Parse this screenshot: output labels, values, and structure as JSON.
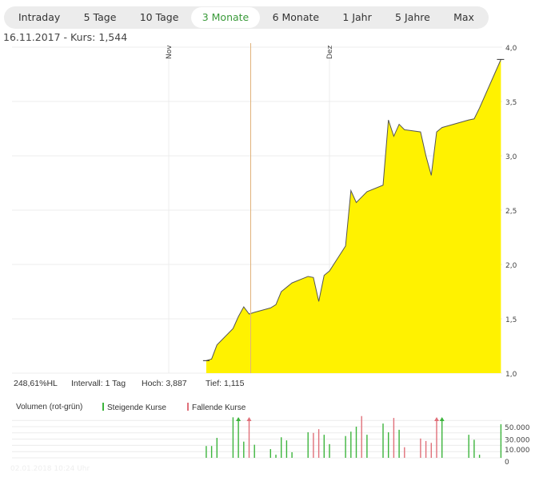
{
  "tabs": [
    {
      "label": "Intraday"
    },
    {
      "label": "5 Tage"
    },
    {
      "label": "10 Tage"
    },
    {
      "label": "3 Monate",
      "active": true
    },
    {
      "label": "6 Monate"
    },
    {
      "label": "1 Jahr"
    },
    {
      "label": "5 Jahre"
    },
    {
      "label": "Max"
    }
  ],
  "header": {
    "cursor_text": "16.11.2017  -  Kurs: 1,544"
  },
  "stats": {
    "change": "248,61%HL",
    "interval": "Intervall: 1 Tag",
    "high": "Hoch:  3,887",
    "low": "Tief:  1,115"
  },
  "volume_legend": {
    "title": "Volumen (rot-grün)",
    "rising": "Steigende Kurse",
    "falling": "Fallende Kurse"
  },
  "timestamp": "02.01.2018 10:24 Uhr",
  "colors": {
    "accent": "#3a9a3a",
    "area": "#fff200",
    "line": "#555555",
    "cursor": "#e0b27a",
    "rising": "#3cb43c",
    "falling": "#e0707a"
  },
  "chart_data": [
    {
      "type": "area",
      "month_labels": [
        {
          "label": "Nov",
          "date": "2017-11-01"
        },
        {
          "label": "Dez",
          "date": "2017-12-01"
        }
      ],
      "y_ticks": [
        "1,0",
        "1,5",
        "2,0",
        "2,5",
        "3,0",
        "3,5",
        "4,0"
      ],
      "ylim": [
        1.0,
        4.0
      ],
      "grid": true,
      "cursor_date": "2017-11-16",
      "dates": [
        "2017-11-08",
        "2017-11-09",
        "2017-11-10",
        "2017-11-13",
        "2017-11-14",
        "2017-11-15",
        "2017-11-16",
        "2017-11-17",
        "2017-11-20",
        "2017-11-21",
        "2017-11-22",
        "2017-11-23",
        "2017-11-24",
        "2017-11-27",
        "2017-11-28",
        "2017-11-29",
        "2017-11-30",
        "2017-12-01",
        "2017-12-04",
        "2017-12-05",
        "2017-12-06",
        "2017-12-07",
        "2017-12-08",
        "2017-12-11",
        "2017-12-12",
        "2017-12-13",
        "2017-12-14",
        "2017-12-15",
        "2017-12-18",
        "2017-12-19",
        "2017-12-20",
        "2017-12-21",
        "2017-12-22",
        "2017-12-27",
        "2017-12-28",
        "2017-12-29",
        "2018-01-02"
      ],
      "values": [
        1.115,
        1.13,
        1.26,
        1.41,
        1.52,
        1.61,
        1.544,
        1.56,
        1.6,
        1.63,
        1.75,
        1.79,
        1.83,
        1.89,
        1.88,
        1.66,
        1.9,
        1.94,
        2.17,
        2.68,
        2.57,
        2.62,
        2.67,
        2.73,
        3.33,
        3.18,
        3.29,
        3.24,
        3.22,
        3.0,
        2.82,
        3.22,
        3.26,
        3.33,
        3.34,
        3.44,
        3.887
      ]
    },
    {
      "type": "bar",
      "y_ticks": [
        {
          "label": "0",
          "value": 0
        },
        {
          "label": "10.000",
          "value": 10000
        },
        {
          "label": "30.000",
          "value": 30000
        },
        {
          "label": "50.000",
          "value": 50000
        }
      ],
      "ylim": [
        0,
        68000
      ],
      "volumes": [
        19000,
        19000,
        32000,
        65000,
        90000,
        26000,
        90000,
        21000,
        14000,
        5000,
        33000,
        28000,
        9000,
        41000,
        40000,
        46000,
        37000,
        22000,
        35000,
        42000,
        50000,
        67000,
        37000,
        55000,
        41000,
        64000,
        45000,
        17000,
        31000,
        27000,
        24000,
        90000,
        90000,
        37000,
        29000,
        5000,
        54000
      ],
      "direction": [
        "up",
        "up",
        "up",
        "up",
        "up",
        "up",
        "down",
        "up",
        "up",
        "up",
        "up",
        "up",
        "up",
        "up",
        "down",
        "down",
        "up",
        "up",
        "up",
        "up",
        "up",
        "down",
        "up",
        "up",
        "up",
        "down",
        "up",
        "down",
        "down",
        "down",
        "down",
        "down",
        "up",
        "up",
        "up",
        "up",
        "up"
      ]
    }
  ]
}
